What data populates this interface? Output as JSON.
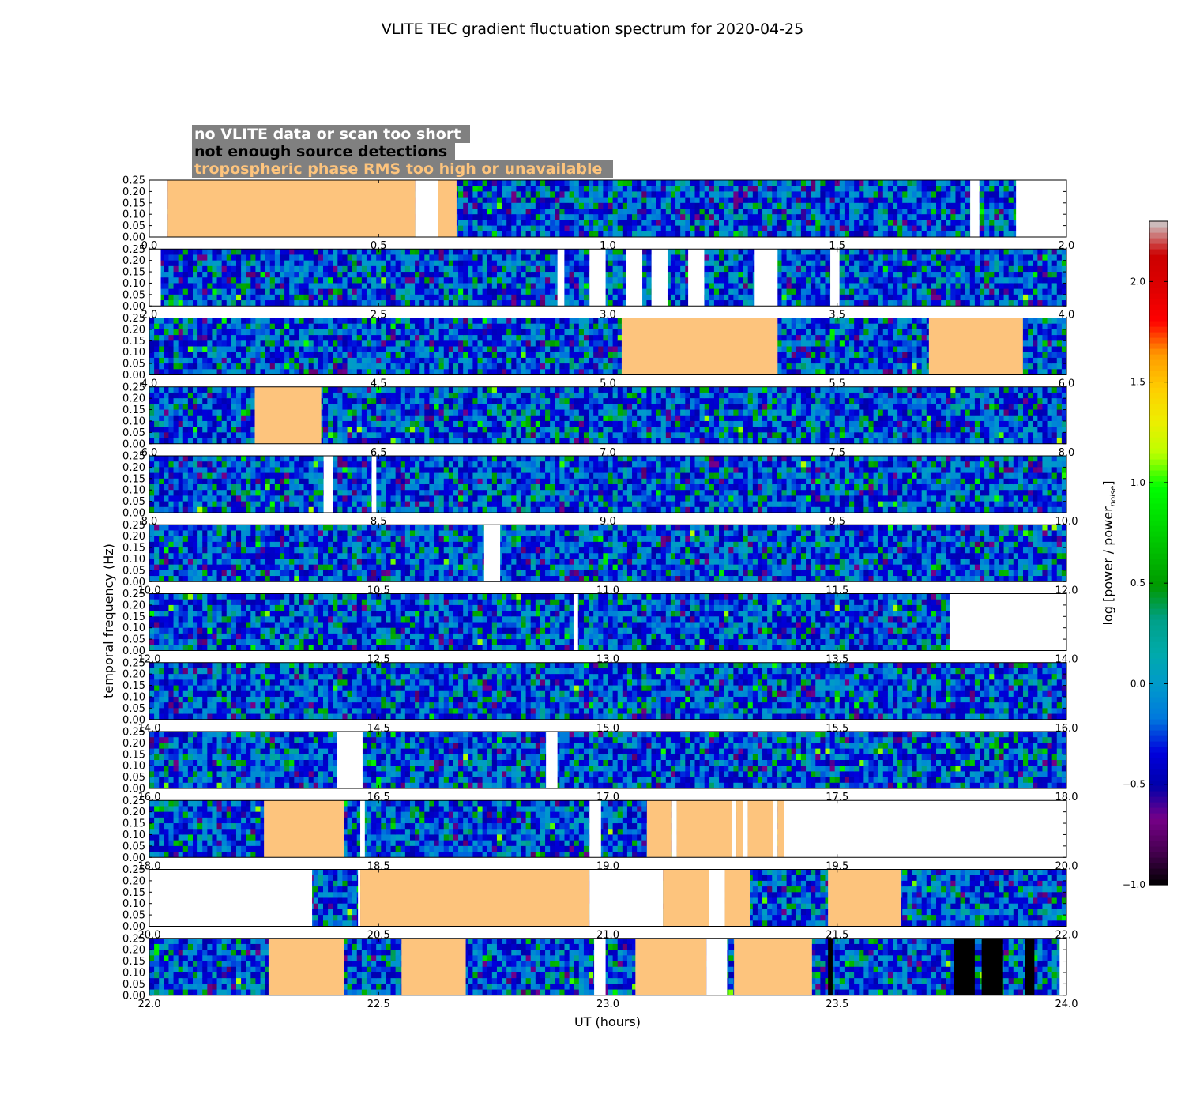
{
  "chart_data": {
    "type": "heatmap",
    "title": "VLITE TEC gradient fluctuation spectrum for 2020-04-25",
    "xlabel": "UT (hours)",
    "ylabel": "temporal frequency (Hz)",
    "colorbar": {
      "label_main": "log [power / power",
      "label_sub": "noise",
      "label_end": "]",
      "range": [
        -1.0,
        2.3
      ],
      "ticks": [
        "−1.0",
        "−0.5",
        "0.0",
        "0.5",
        "1.0",
        "1.5",
        "2.0"
      ],
      "tick_values": [
        -1.0,
        -0.5,
        0.0,
        0.5,
        1.0,
        1.5,
        2.0
      ]
    },
    "legend": [
      {
        "text": "no VLITE data or scan too short",
        "color": "#ffffff"
      },
      {
        "text": "not enough source detections",
        "color": "#000000"
      },
      {
        "text": "tropospheric phase RMS too high or unavailable",
        "color": "#fdc47d"
      }
    ],
    "legend_background": "#808080",
    "colors": {
      "no_data": "#ffffff",
      "few_detections": "#000000",
      "tropo_rms": "#fdc47d"
    },
    "ylim": [
      0.0,
      0.25
    ],
    "ytick_labels": [
      "0.00",
      "0.05",
      "0.10",
      "0.15",
      "0.20",
      "0.25"
    ],
    "panels": [
      {
        "xlim": [
          0.0,
          2.0
        ],
        "xtick_labels": [
          "0.0",
          "0.5",
          "1.0",
          "1.5",
          "2.0"
        ],
        "flags": [
          {
            "start": 0.0,
            "end": 0.04,
            "type": "no_data"
          },
          {
            "start": 0.04,
            "end": 0.58,
            "type": "tropo_rms"
          },
          {
            "start": 0.58,
            "end": 0.63,
            "type": "no_data"
          },
          {
            "start": 0.63,
            "end": 0.67,
            "type": "tropo_rms"
          },
          {
            "start": 1.79,
            "end": 1.81,
            "type": "no_data"
          },
          {
            "start": 1.89,
            "end": 2.0,
            "type": "no_data"
          }
        ]
      },
      {
        "xlim": [
          2.0,
          4.0
        ],
        "xtick_labels": [
          "2.0",
          "2.5",
          "3.0",
          "3.5",
          "4.0"
        ],
        "flags": [
          {
            "start": 2.0,
            "end": 2.025,
            "type": "no_data"
          },
          {
            "start": 2.89,
            "end": 2.905,
            "type": "no_data"
          },
          {
            "start": 2.96,
            "end": 2.995,
            "type": "no_data"
          },
          {
            "start": 3.04,
            "end": 3.075,
            "type": "no_data"
          },
          {
            "start": 3.095,
            "end": 3.13,
            "type": "no_data"
          },
          {
            "start": 3.175,
            "end": 3.21,
            "type": "no_data"
          },
          {
            "start": 3.32,
            "end": 3.37,
            "type": "no_data"
          },
          {
            "start": 3.485,
            "end": 3.505,
            "type": "no_data"
          }
        ]
      },
      {
        "xlim": [
          4.0,
          6.0
        ],
        "xtick_labels": [
          "4.0",
          "4.5",
          "5.0",
          "5.5",
          "6.0"
        ],
        "flags": [
          {
            "start": 5.03,
            "end": 5.37,
            "type": "tropo_rms"
          },
          {
            "start": 5.7,
            "end": 5.905,
            "type": "tropo_rms"
          }
        ]
      },
      {
        "xlim": [
          6.0,
          8.0
        ],
        "xtick_labels": [
          "6.0",
          "6.5",
          "7.0",
          "7.5",
          "8.0"
        ],
        "flags": [
          {
            "start": 6.23,
            "end": 6.375,
            "type": "tropo_rms"
          }
        ]
      },
      {
        "xlim": [
          8.0,
          10.0
        ],
        "xtick_labels": [
          "8.0",
          "8.5",
          "9.0",
          "9.5",
          "10.0"
        ],
        "flags": [
          {
            "start": 8.38,
            "end": 8.4,
            "type": "no_data"
          },
          {
            "start": 8.485,
            "end": 8.495,
            "type": "no_data"
          }
        ]
      },
      {
        "xlim": [
          10.0,
          12.0
        ],
        "xtick_labels": [
          "10.0",
          "10.5",
          "11.0",
          "11.5",
          "12.0"
        ],
        "flags": [
          {
            "start": 10.73,
            "end": 10.765,
            "type": "no_data"
          }
        ]
      },
      {
        "xlim": [
          12.0,
          14.0
        ],
        "xtick_labels": [
          "12.0",
          "12.5",
          "13.0",
          "13.5",
          "14.0"
        ],
        "flags": [
          {
            "start": 12.925,
            "end": 12.935,
            "type": "no_data"
          },
          {
            "start": 13.745,
            "end": 14.0,
            "type": "no_data"
          }
        ]
      },
      {
        "xlim": [
          14.0,
          16.0
        ],
        "xtick_labels": [
          "14.0",
          "14.5",
          "15.0",
          "15.5",
          "16.0"
        ],
        "flags": []
      },
      {
        "xlim": [
          16.0,
          18.0
        ],
        "xtick_labels": [
          "16.0",
          "16.5",
          "17.0",
          "17.5",
          "18.0"
        ],
        "flags": [
          {
            "start": 16.41,
            "end": 16.465,
            "type": "no_data"
          },
          {
            "start": 16.865,
            "end": 16.89,
            "type": "no_data"
          }
        ]
      },
      {
        "xlim": [
          18.0,
          20.0
        ],
        "xtick_labels": [
          "18.0",
          "18.5",
          "19.0",
          "19.5",
          "20.0"
        ],
        "flags": [
          {
            "start": 18.25,
            "end": 18.425,
            "type": "tropo_rms"
          },
          {
            "start": 18.46,
            "end": 18.47,
            "type": "no_data"
          },
          {
            "start": 18.96,
            "end": 18.985,
            "type": "no_data"
          },
          {
            "start": 19.085,
            "end": 19.14,
            "type": "tropo_rms"
          },
          {
            "start": 19.14,
            "end": 19.15,
            "type": "no_data"
          },
          {
            "start": 19.15,
            "end": 19.27,
            "type": "tropo_rms"
          },
          {
            "start": 19.27,
            "end": 19.28,
            "type": "no_data"
          },
          {
            "start": 19.28,
            "end": 19.295,
            "type": "tropo_rms"
          },
          {
            "start": 19.295,
            "end": 19.305,
            "type": "no_data"
          },
          {
            "start": 19.305,
            "end": 19.36,
            "type": "tropo_rms"
          },
          {
            "start": 19.36,
            "end": 19.37,
            "type": "no_data"
          },
          {
            "start": 19.37,
            "end": 19.385,
            "type": "tropo_rms"
          },
          {
            "start": 19.385,
            "end": 20.0,
            "type": "no_data"
          }
        ]
      },
      {
        "xlim": [
          20.0,
          22.0
        ],
        "xtick_labels": [
          "20.0",
          "20.5",
          "21.0",
          "21.5",
          "22.0"
        ],
        "flags": [
          {
            "start": 20.0,
            "end": 20.355,
            "type": "no_data"
          },
          {
            "start": 20.455,
            "end": 20.46,
            "type": "no_data"
          },
          {
            "start": 20.46,
            "end": 20.96,
            "type": "tropo_rms"
          },
          {
            "start": 20.96,
            "end": 21.12,
            "type": "no_data"
          },
          {
            "start": 21.12,
            "end": 21.22,
            "type": "tropo_rms"
          },
          {
            "start": 21.22,
            "end": 21.255,
            "type": "no_data"
          },
          {
            "start": 21.255,
            "end": 21.31,
            "type": "tropo_rms"
          },
          {
            "start": 21.48,
            "end": 21.64,
            "type": "tropo_rms"
          }
        ]
      },
      {
        "xlim": [
          22.0,
          24.0
        ],
        "xtick_labels": [
          "22.0",
          "22.5",
          "23.0",
          "23.5",
          "24.0"
        ],
        "flags": [
          {
            "start": 22.26,
            "end": 22.425,
            "type": "tropo_rms"
          },
          {
            "start": 22.55,
            "end": 22.69,
            "type": "tropo_rms"
          },
          {
            "start": 22.97,
            "end": 22.995,
            "type": "no_data"
          },
          {
            "start": 23.06,
            "end": 23.215,
            "type": "tropo_rms"
          },
          {
            "start": 23.215,
            "end": 23.26,
            "type": "no_data"
          },
          {
            "start": 23.275,
            "end": 23.445,
            "type": "tropo_rms"
          },
          {
            "start": 23.48,
            "end": 23.49,
            "type": "few_detections"
          },
          {
            "start": 23.755,
            "end": 23.8,
            "type": "few_detections"
          },
          {
            "start": 23.815,
            "end": 23.86,
            "type": "few_detections"
          },
          {
            "start": 23.91,
            "end": 23.93,
            "type": "few_detections"
          },
          {
            "start": 23.985,
            "end": 24.0,
            "type": "no_data"
          }
        ]
      }
    ]
  }
}
